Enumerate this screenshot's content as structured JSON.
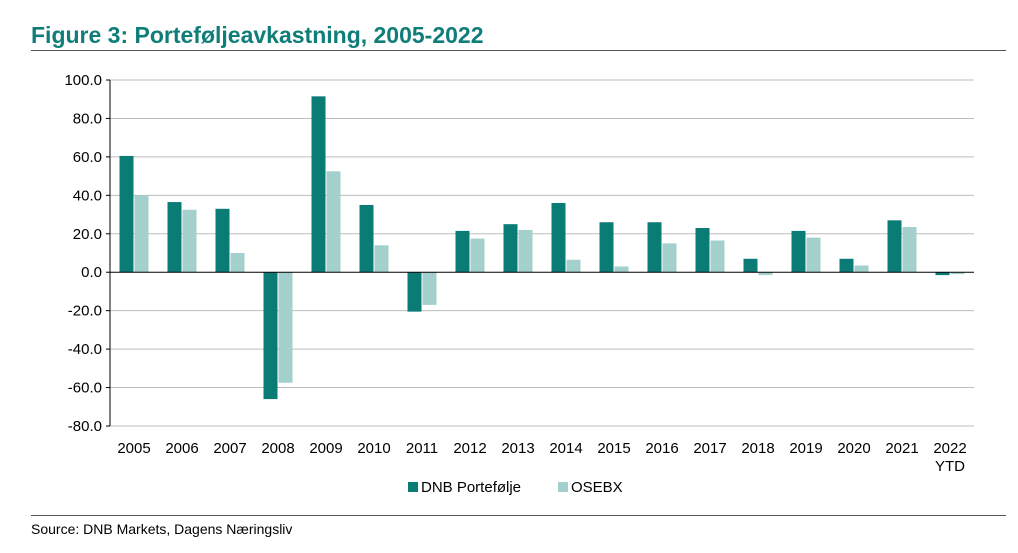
{
  "title": "Figure 3: Porteføljeavkastning, 2005-2022",
  "source": "Source: DNB Markets, Dagens Næringsliv",
  "colors": {
    "dnb": "#0b7b76",
    "osebx": "#a3cfcd",
    "title": "#0f7d78",
    "grid": "#bdbdbd"
  },
  "chart_data": {
    "type": "bar",
    "title": "Figure 3: Porteføljeavkastning, 2005-2022",
    "xlabel": "",
    "ylabel": "",
    "ylim": [
      -80,
      100
    ],
    "yticks": [
      "100.0",
      "80.0",
      "60.0",
      "40.0",
      "20.0",
      "0.0",
      "-20.0",
      "-40.0",
      "-60.0",
      "-80.0"
    ],
    "ytick_values": [
      100,
      80,
      60,
      40,
      20,
      0,
      -20,
      -40,
      -60,
      -80
    ],
    "grid": true,
    "legend_position": "bottom",
    "categories": [
      "2005",
      "2006",
      "2007",
      "2008",
      "2009",
      "2010",
      "2011",
      "2012",
      "2013",
      "2014",
      "2015",
      "2016",
      "2017",
      "2018",
      "2019",
      "2020",
      "2021",
      "2022 YTD"
    ],
    "category_lines": [
      [
        "2005"
      ],
      [
        "2006"
      ],
      [
        "2007"
      ],
      [
        "2008"
      ],
      [
        "2009"
      ],
      [
        "2010"
      ],
      [
        "2011"
      ],
      [
        "2012"
      ],
      [
        "2013"
      ],
      [
        "2014"
      ],
      [
        "2015"
      ],
      [
        "2016"
      ],
      [
        "2017"
      ],
      [
        "2018"
      ],
      [
        "2019"
      ],
      [
        "2020"
      ],
      [
        "2021"
      ],
      [
        "2022",
        "YTD"
      ]
    ],
    "series": [
      {
        "name": "DNB Portefølje",
        "values": [
          60.5,
          36.5,
          33.0,
          -66.0,
          91.5,
          35.0,
          -20.5,
          21.5,
          25.0,
          36.0,
          26.0,
          26.0,
          23.0,
          7.0,
          21.5,
          7.0,
          27.0,
          -1.5
        ]
      },
      {
        "name": "OSEBX",
        "values": [
          40.0,
          32.5,
          10.0,
          -57.5,
          52.5,
          14.0,
          -17.0,
          17.5,
          22.0,
          6.5,
          3.0,
          15.0,
          16.5,
          -1.5,
          18.0,
          3.5,
          23.5,
          -1.0
        ]
      }
    ]
  }
}
